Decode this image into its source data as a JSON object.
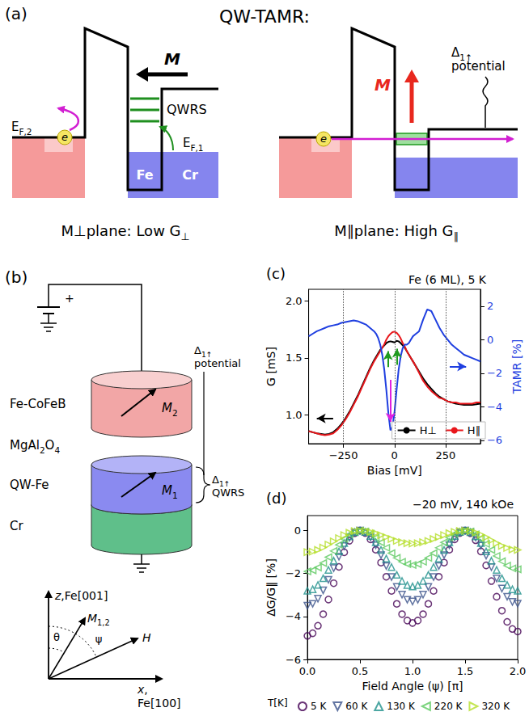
{
  "panel_a": {
    "letter": "(a)",
    "title": "QW-TAMR:",
    "left": {
      "magnetization": [
        [
          {
            "t": "M",
            "i": true,
            "b": true
          }
        ]
      ],
      "qwrs": [
        [
          {
            "t": "QWRS"
          }
        ]
      ],
      "ef2": [
        [
          {
            "t": "E"
          },
          {
            "t": "F,2",
            "sub": true
          }
        ]
      ],
      "ef1": [
        [
          {
            "t": "E"
          },
          {
            "t": "F,1",
            "sub": true
          }
        ]
      ],
      "electron": "e",
      "fe": "Fe",
      "cr": "Cr",
      "caption": [
        [
          {
            "t": "M⊥plane: Low G"
          },
          {
            "t": "⊥",
            "sub": true
          }
        ]
      ]
    },
    "right": {
      "magnetization": [
        [
          {
            "t": "M",
            "i": true,
            "b": true
          }
        ]
      ],
      "electron": "e",
      "potential": [
        [
          {
            "t": "Δ"
          },
          {
            "t": "1↑",
            "sub": true
          }
        ],
        [
          {
            "t": "potential"
          }
        ]
      ],
      "caption": [
        [
          {
            "t": "M∥plane: High G"
          },
          {
            "t": "∥",
            "sub": true
          }
        ]
      ]
    }
  },
  "panel_b": {
    "letter": "(b)",
    "battery_sign": "+",
    "top_electrode": [
      [
        {
          "t": "Fe-CoFeB"
        }
      ]
    ],
    "barrier": [
      [
        {
          "t": "MgAl"
        },
        {
          "t": "2",
          "sub": true
        },
        {
          "t": "O"
        },
        {
          "t": "4",
          "sub": true
        }
      ]
    ],
    "quantum_well": [
      [
        {
          "t": "QW-Fe"
        }
      ]
    ],
    "buffer": [
      [
        {
          "t": "Cr"
        }
      ]
    ],
    "m2": [
      [
        {
          "t": "M",
          "i": true
        },
        {
          "t": "2",
          "sub": true
        }
      ]
    ],
    "m1": [
      [
        {
          "t": "M",
          "i": true
        },
        {
          "t": "1",
          "sub": true
        }
      ]
    ],
    "potential": [
      [
        {
          "t": "Δ"
        },
        {
          "t": "1↑",
          "sub": true
        }
      ],
      [
        {
          "t": "potential"
        }
      ]
    ],
    "qwrs": [
      [
        {
          "t": "Δ"
        },
        {
          "t": "1↑",
          "sub": true
        }
      ],
      [
        {
          "t": "QWRS"
        }
      ]
    ],
    "z_axis": [
      [
        {
          "t": "z",
          "i": true
        },
        {
          "t": ",Fe[001]"
        }
      ]
    ],
    "x_axis": [
      [
        {
          "t": "x",
          "i": true
        },
        {
          "t": ","
        }
      ],
      [
        {
          "t": "Fe[100]"
        }
      ]
    ],
    "m12": [
      [
        {
          "t": "M",
          "i": true
        },
        {
          "t": "1,2",
          "sub": true
        }
      ]
    ],
    "field": [
      [
        {
          "t": "H",
          "i": true
        }
      ]
    ],
    "theta": [
      [
        {
          "t": "θ"
        }
      ]
    ],
    "psi": [
      [
        {
          "t": "ψ"
        }
      ]
    ]
  },
  "chart_data": [
    {
      "type": "line",
      "letter": "(c)",
      "title": "Fe (6 ML), 5 K",
      "x_label": "Bias [mV]",
      "y_label": "G [mS]",
      "y2_label": "TAMR [%]",
      "x": [
        -420,
        -400,
        -380,
        -360,
        -340,
        -320,
        -300,
        -280,
        -260,
        -240,
        -220,
        -200,
        -180,
        -160,
        -140,
        -120,
        -100,
        -90,
        -80,
        -70,
        -60,
        -50,
        -40,
        -30,
        -20,
        -10,
        0,
        10,
        20,
        30,
        40,
        50,
        60,
        70,
        80,
        90,
        100,
        120,
        140,
        160,
        180,
        200,
        220,
        240,
        260,
        280,
        300,
        320,
        340,
        360,
        380,
        400,
        420
      ],
      "series": [
        {
          "name": "H⊥",
          "color": "#000000",
          "values": [
            0.86,
            0.85,
            0.84,
            0.835,
            0.83,
            0.835,
            0.85,
            0.88,
            0.92,
            0.97,
            1.03,
            1.1,
            1.17,
            1.25,
            1.33,
            1.41,
            1.48,
            1.51,
            1.54,
            1.57,
            1.59,
            1.61,
            1.63,
            1.64,
            1.645,
            1.64,
            1.635,
            1.65,
            1.645,
            1.63,
            1.61,
            1.59,
            1.56,
            1.53,
            1.5,
            1.47,
            1.44,
            1.38,
            1.32,
            1.27,
            1.23,
            1.19,
            1.16,
            1.14,
            1.12,
            1.11,
            1.1,
            1.095,
            1.09,
            1.09,
            1.09,
            1.095,
            1.1
          ]
        },
        {
          "name": "H∥",
          "color": "#e8161b",
          "values": [
            0.86,
            0.85,
            0.84,
            0.83,
            0.825,
            0.83,
            0.84,
            0.87,
            0.91,
            0.96,
            1.02,
            1.09,
            1.16,
            1.24,
            1.32,
            1.4,
            1.47,
            1.5,
            1.53,
            1.56,
            1.59,
            1.62,
            1.66,
            1.69,
            1.71,
            1.725,
            1.73,
            1.72,
            1.7,
            1.67,
            1.63,
            1.6,
            1.56,
            1.53,
            1.5,
            1.47,
            1.44,
            1.37,
            1.3,
            1.25,
            1.21,
            1.18,
            1.15,
            1.14,
            1.12,
            1.11,
            1.11,
            1.1,
            1.1,
            1.1,
            1.1,
            1.11,
            1.11
          ]
        },
        {
          "color": "#1f3fe0",
          "axis": "y2",
          "values": [
            0.2,
            0.35,
            0.5,
            0.6,
            0.7,
            0.8,
            0.85,
            0.9,
            1.0,
            1.05,
            1.1,
            1.15,
            1.1,
            1.0,
            0.9,
            0.7,
            0.5,
            0.35,
            0.1,
            -0.3,
            -0.9,
            -1.8,
            -3.0,
            -4.4,
            -5.4,
            -5.2,
            -4.3,
            -3.0,
            -1.8,
            -1.0,
            -0.5,
            -0.3,
            -0.3,
            -0.2,
            0.0,
            0.2,
            0.3,
            0.5,
            1.2,
            1.8,
            1.7,
            1.2,
            0.7,
            0.3,
            0.0,
            -0.3,
            -0.5,
            -0.7,
            -0.9,
            -1.0,
            -1.1,
            -1.2,
            -1.3
          ]
        }
      ],
      "xlim": [
        -420,
        420
      ],
      "xticks": [
        {
          "value": -250,
          "label": "−250"
        },
        0,
        250
      ],
      "ylim": [
        0.75,
        2.1
      ],
      "yticks": [
        {
          "value": 1,
          "label": "1.0"
        },
        1.5,
        {
          "value": 2,
          "label": "2.0"
        }
      ],
      "y2lim": [
        -6.2,
        3
      ],
      "y2ticks": [
        {
          "value": -6,
          "label": "−6"
        },
        {
          "value": -4,
          "label": "−4"
        },
        {
          "value": -2,
          "label": "−2"
        },
        0,
        2
      ],
      "grid": "x",
      "legend": "lower right",
      "arrows": [
        {
          "from": [
            -32,
            1.42
          ],
          "to": [
            -32,
            1.56
          ],
          "color": "#1f9a1f"
        },
        {
          "from": [
            12,
            1.44
          ],
          "to": [
            12,
            1.58
          ],
          "color": "#1f9a1f"
        },
        {
          "from": [
            -20,
            -2.4
          ],
          "to": [
            -20,
            -4.9
          ],
          "axis": "y2",
          "color": "#e020e0"
        },
        {
          "from": [
            -300,
            0.97
          ],
          "to": [
            -380,
            0.97
          ],
          "color": "#000000"
        },
        {
          "from": [
            270,
            -1.6
          ],
          "to": [
            350,
            -1.6
          ],
          "axis": "y2",
          "color": "#1f3fe0"
        }
      ]
    },
    {
      "type": "scatter",
      "letter": "(d)",
      "title": "−20 mV, 140 kOe",
      "x_label": "Field Angle (ψ) [π]",
      "y_label": "ΔG/G∥ [%]",
      "x": [
        0,
        0.05,
        0.1,
        0.15,
        0.2,
        0.25,
        0.3,
        0.35,
        0.4,
        0.45,
        0.5,
        0.55,
        0.6,
        0.65,
        0.7,
        0.75,
        0.8,
        0.85,
        0.9,
        0.95,
        1,
        1.05,
        1.1,
        1.15,
        1.2,
        1.25,
        1.3,
        1.35,
        1.4,
        1.45,
        1.5,
        1.55,
        1.6,
        1.65,
        1.7,
        1.75,
        1.8,
        1.85,
        1.9,
        1.95,
        2
      ],
      "series": [
        {
          "name": "5 K",
          "color": "#440154",
          "marker": "circle",
          "values": [
            -4.9,
            -4.78,
            -4.43,
            -3.89,
            -3.21,
            -2.45,
            -1.69,
            -1.01,
            -0.47,
            -0.12,
            0,
            -0.11,
            -0.41,
            -0.89,
            -1.49,
            -2.15,
            -2.81,
            -3.41,
            -3.89,
            -4.19,
            -4.3,
            -4.19,
            -3.89,
            -3.41,
            -2.81,
            -2.15,
            -1.49,
            -0.89,
            -0.41,
            -0.11,
            0,
            -0.12,
            -0.45,
            -0.97,
            -1.62,
            -2.35,
            -3.08,
            -3.73,
            -4.25,
            -4.58,
            -4.7
          ]
        },
        {
          "name": "60 K",
          "color": "#3b528b",
          "marker": "triangle_down",
          "values": [
            -3.5,
            -3.41,
            -3.17,
            -2.78,
            -2.29,
            -1.75,
            -1.21,
            -0.72,
            -0.33,
            -0.09,
            0,
            -0.08,
            -0.32,
            -0.68,
            -1.14,
            -1.65,
            -2.16,
            -2.62,
            -2.98,
            -3.22,
            -3.3,
            -3.22,
            -2.98,
            -2.62,
            -2.16,
            -1.65,
            -1.14,
            -0.68,
            -0.32,
            -0.08,
            0,
            -0.08,
            -0.32,
            -0.7,
            -1.17,
            -1.7,
            -2.23,
            -2.7,
            -3.08,
            -3.32,
            -3.4
          ]
        },
        {
          "name": "130 K",
          "color": "#21918c",
          "marker": "triangle_up",
          "values": [
            -2.8,
            -2.73,
            -2.53,
            -2.22,
            -1.83,
            -1.4,
            -0.97,
            -0.58,
            -0.27,
            -0.07,
            0,
            -0.06,
            -0.25,
            -0.54,
            -0.9,
            -1.3,
            -1.7,
            -2.06,
            -2.35,
            -2.54,
            -2.6,
            -2.54,
            -2.35,
            -2.06,
            -1.7,
            -1.3,
            -0.9,
            -0.54,
            -0.25,
            -0.06,
            0,
            -0.07,
            -0.27,
            -0.58,
            -0.97,
            -1.4,
            -1.83,
            -2.22,
            -2.53,
            -2.73,
            -2.8
          ]
        },
        {
          "name": "220 K",
          "color": "#5ec962",
          "marker": "triangle_left",
          "values": [
            -1.9,
            -1.85,
            -1.72,
            -1.51,
            -1.24,
            -0.95,
            -0.66,
            -0.39,
            -0.18,
            -0.05,
            0,
            -0.04,
            -0.15,
            -0.33,
            -0.55,
            -0.8,
            -1.05,
            -1.27,
            -1.45,
            -1.56,
            -1.6,
            -1.56,
            -1.45,
            -1.27,
            -1.05,
            -0.8,
            -0.55,
            -0.33,
            -0.15,
            -0.04,
            0,
            -0.04,
            -0.17,
            -0.37,
            -0.62,
            -0.9,
            -1.18,
            -1.43,
            -1.63,
            -1.76,
            -1.8
          ]
        },
        {
          "name": "320 K",
          "color": "#b5de2b",
          "marker": "triangle_right",
          "values": [
            -1.0,
            -0.98,
            -0.9,
            -0.79,
            -0.65,
            -0.5,
            -0.35,
            -0.21,
            -0.1,
            -0.02,
            0,
            -0.01,
            -0.06,
            -0.12,
            -0.21,
            -0.3,
            -0.39,
            -0.48,
            -0.54,
            -0.59,
            -0.6,
            -0.59,
            -0.54,
            -0.48,
            -0.39,
            -0.3,
            -0.21,
            -0.12,
            -0.06,
            -0.01,
            0,
            -0.02,
            -0.09,
            -0.19,
            -0.31,
            -0.45,
            -0.59,
            -0.71,
            -0.81,
            -0.88,
            -0.9
          ]
        }
      ],
      "xlim": [
        0,
        2
      ],
      "xticks": [
        {
          "value": 0,
          "label": "0.0"
        },
        0.5,
        {
          "value": 1,
          "label": "1.0"
        },
        1.5,
        {
          "value": 2,
          "label": "2.0"
        }
      ],
      "ylim": [
        -6,
        0.7
      ],
      "yticks": [
        {
          "value": -6,
          "label": "−6"
        },
        {
          "value": -4,
          "label": "−4"
        },
        {
          "value": -2,
          "label": "−2"
        },
        0
      ],
      "grid": false,
      "legend": "bottom",
      "legend_title": "T[K]"
    }
  ]
}
